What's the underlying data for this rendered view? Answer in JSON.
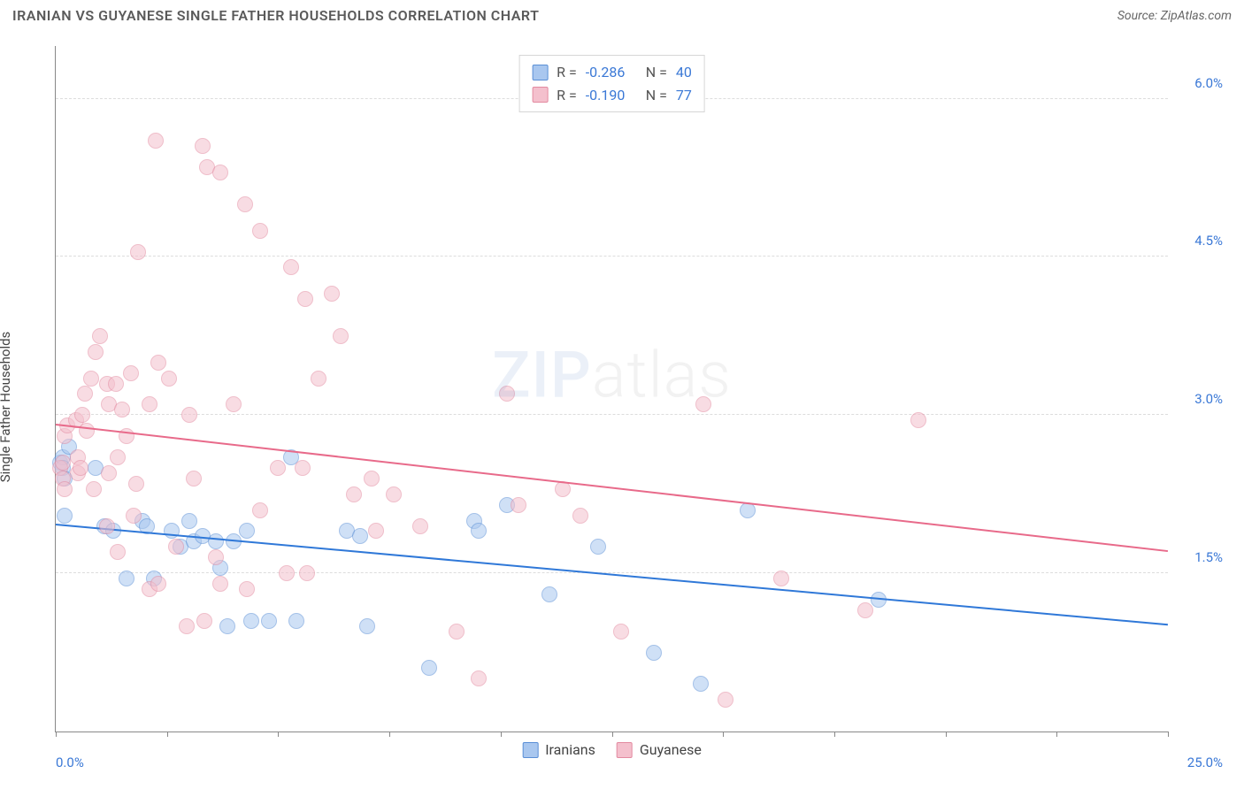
{
  "header": {
    "title": "IRANIAN VS GUYANESE SINGLE FATHER HOUSEHOLDS CORRELATION CHART",
    "source_prefix": "Source: ",
    "source_name": "ZipAtlas.com"
  },
  "watermark": {
    "strong": "ZIP",
    "light": "atlas"
  },
  "chart": {
    "type": "scatter",
    "ylabel": "Single Father Households",
    "background_color": "#ffffff",
    "grid_color": "#dddddd",
    "axis_color": "#888888",
    "xlim": [
      0,
      25
    ],
    "ylim": [
      0,
      6.5
    ],
    "x_corner_labels": {
      "min": "0.0%",
      "max": "25.0%",
      "color": "#3a78d6"
    },
    "x_ticks": [
      0,
      2.5,
      5,
      7.5,
      10,
      12.5,
      15,
      17.5,
      20,
      22.5,
      25
    ],
    "y_ticks": [
      {
        "v": 1.5,
        "label": "1.5%"
      },
      {
        "v": 3.0,
        "label": "3.0%"
      },
      {
        "v": 4.5,
        "label": "4.5%"
      },
      {
        "v": 6.0,
        "label": "6.0%"
      }
    ],
    "ytick_color": "#3a78d6",
    "marker_radius": 9,
    "marker_opacity": 0.55,
    "series": [
      {
        "name": "Iranians",
        "color_fill": "#a9c7ef",
        "color_stroke": "#5a8fd6",
        "R": "-0.286",
        "N": "40",
        "trend": {
          "y_at_xmin": 1.95,
          "y_at_xmax": 1.0,
          "color": "#2f78d8"
        },
        "points": [
          [
            0.1,
            2.55
          ],
          [
            0.15,
            2.6
          ],
          [
            0.15,
            2.5
          ],
          [
            0.2,
            2.4
          ],
          [
            0.2,
            2.05
          ],
          [
            0.3,
            2.7
          ],
          [
            0.9,
            2.5
          ],
          [
            1.1,
            1.95
          ],
          [
            1.3,
            1.9
          ],
          [
            1.6,
            1.45
          ],
          [
            1.95,
            2.0
          ],
          [
            2.05,
            1.95
          ],
          [
            2.2,
            1.45
          ],
          [
            2.6,
            1.9
          ],
          [
            2.8,
            1.75
          ],
          [
            3.0,
            2.0
          ],
          [
            3.1,
            1.8
          ],
          [
            3.3,
            1.85
          ],
          [
            3.6,
            1.8
          ],
          [
            3.7,
            1.55
          ],
          [
            3.85,
            1.0
          ],
          [
            4.0,
            1.8
          ],
          [
            4.3,
            1.9
          ],
          [
            4.4,
            1.05
          ],
          [
            4.8,
            1.05
          ],
          [
            5.3,
            2.6
          ],
          [
            5.4,
            1.05
          ],
          [
            6.55,
            1.9
          ],
          [
            6.85,
            1.85
          ],
          [
            7.0,
            1.0
          ],
          [
            8.4,
            0.6
          ],
          [
            9.4,
            2.0
          ],
          [
            9.5,
            1.9
          ],
          [
            10.15,
            2.15
          ],
          [
            11.1,
            1.3
          ],
          [
            12.2,
            1.75
          ],
          [
            13.45,
            0.75
          ],
          [
            14.5,
            0.45
          ],
          [
            15.55,
            2.1
          ],
          [
            18.5,
            1.25
          ]
        ]
      },
      {
        "name": "Guyanese",
        "color_fill": "#f4c0cd",
        "color_stroke": "#e38aa0",
        "R": "-0.190",
        "N": "77",
        "trend": {
          "y_at_xmin": 2.9,
          "y_at_xmax": 1.7,
          "color": "#e86a8a"
        },
        "points": [
          [
            0.1,
            2.5
          ],
          [
            0.15,
            2.55
          ],
          [
            0.15,
            2.4
          ],
          [
            0.2,
            2.3
          ],
          [
            0.2,
            2.8
          ],
          [
            0.25,
            2.9
          ],
          [
            0.45,
            2.95
          ],
          [
            0.5,
            2.6
          ],
          [
            0.5,
            2.45
          ],
          [
            0.55,
            2.5
          ],
          [
            0.6,
            3.0
          ],
          [
            0.65,
            3.2
          ],
          [
            0.7,
            2.85
          ],
          [
            0.8,
            3.35
          ],
          [
            0.85,
            2.3
          ],
          [
            0.9,
            3.6
          ],
          [
            1.0,
            3.75
          ],
          [
            1.15,
            3.3
          ],
          [
            1.15,
            1.95
          ],
          [
            1.2,
            3.1
          ],
          [
            1.2,
            2.45
          ],
          [
            1.35,
            3.3
          ],
          [
            1.4,
            2.6
          ],
          [
            1.4,
            1.7
          ],
          [
            1.5,
            3.05
          ],
          [
            1.6,
            2.8
          ],
          [
            1.7,
            3.4
          ],
          [
            1.75,
            2.05
          ],
          [
            1.8,
            2.35
          ],
          [
            1.85,
            4.55
          ],
          [
            2.1,
            3.1
          ],
          [
            2.1,
            1.35
          ],
          [
            2.25,
            5.6
          ],
          [
            2.3,
            3.5
          ],
          [
            2.3,
            1.4
          ],
          [
            2.55,
            3.35
          ],
          [
            2.7,
            1.75
          ],
          [
            2.95,
            1.0
          ],
          [
            3.0,
            3.0
          ],
          [
            3.1,
            2.4
          ],
          [
            3.3,
            5.55
          ],
          [
            3.35,
            1.05
          ],
          [
            3.4,
            5.35
          ],
          [
            3.6,
            1.65
          ],
          [
            3.7,
            5.3
          ],
          [
            3.7,
            1.4
          ],
          [
            4.0,
            3.1
          ],
          [
            4.25,
            5.0
          ],
          [
            4.3,
            1.35
          ],
          [
            4.6,
            4.75
          ],
          [
            4.6,
            2.1
          ],
          [
            5.0,
            2.5
          ],
          [
            5.2,
            1.5
          ],
          [
            5.3,
            4.4
          ],
          [
            5.55,
            2.5
          ],
          [
            5.6,
            4.1
          ],
          [
            5.65,
            1.5
          ],
          [
            5.9,
            3.35
          ],
          [
            6.2,
            4.15
          ],
          [
            6.4,
            3.75
          ],
          [
            6.7,
            2.25
          ],
          [
            7.1,
            2.4
          ],
          [
            7.2,
            1.9
          ],
          [
            7.6,
            2.25
          ],
          [
            8.2,
            1.95
          ],
          [
            9.0,
            0.95
          ],
          [
            9.5,
            0.5
          ],
          [
            10.15,
            3.2
          ],
          [
            10.4,
            2.15
          ],
          [
            11.4,
            2.3
          ],
          [
            11.8,
            2.05
          ],
          [
            12.7,
            0.95
          ],
          [
            14.55,
            3.1
          ],
          [
            15.05,
            0.3
          ],
          [
            16.3,
            1.45
          ],
          [
            18.2,
            1.15
          ],
          [
            19.4,
            2.95
          ]
        ]
      }
    ],
    "legend": {
      "R_label": "R =",
      "N_label": "N =",
      "text_color": "#555555",
      "value_color": "#3a78d6"
    }
  }
}
